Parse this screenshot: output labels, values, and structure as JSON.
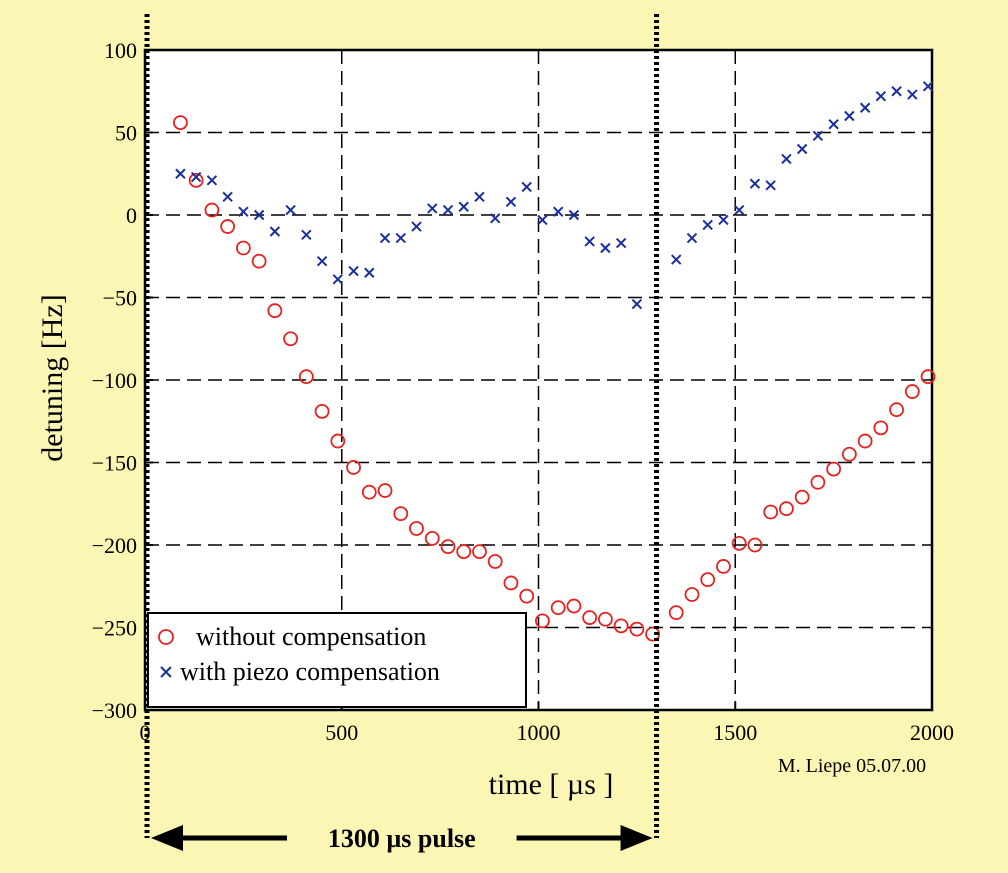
{
  "chart_data": {
    "type": "scatter",
    "title": "",
    "xlabel": "time [ µs ]",
    "ylabel": "detuning [Hz]",
    "xlim": [
      0,
      2000
    ],
    "ylim": [
      -300,
      100
    ],
    "grid": true,
    "legend_placement": "bottom-left",
    "x_ticks": [
      0,
      500,
      1000,
      1500,
      2000
    ],
    "x_tick_labels": [
      "0",
      "500",
      "1000",
      "1500",
      "2000"
    ],
    "y_ticks": [
      100,
      50,
      0,
      -50,
      -100,
      -150,
      -200,
      -250,
      -300
    ],
    "y_tick_labels": [
      "100",
      "50",
      "0",
      "−50",
      "−100",
      "−150",
      "−200",
      "−250",
      "−300"
    ],
    "series": [
      {
        "name": "without compensation",
        "marker": "circle",
        "color": "#e8201e",
        "points": [
          [
            90,
            56
          ],
          [
            130,
            21
          ],
          [
            170,
            3
          ],
          [
            210,
            -7
          ],
          [
            250,
            -20
          ],
          [
            290,
            -28
          ],
          [
            330,
            -58
          ],
          [
            370,
            -75
          ],
          [
            410,
            -98
          ],
          [
            450,
            -119
          ],
          [
            490,
            -137
          ],
          [
            530,
            -153
          ],
          [
            570,
            -168
          ],
          [
            610,
            -167
          ],
          [
            650,
            -181
          ],
          [
            690,
            -190
          ],
          [
            730,
            -196
          ],
          [
            770,
            -201
          ],
          [
            810,
            -204
          ],
          [
            850,
            -204
          ],
          [
            890,
            -210
          ],
          [
            930,
            -223
          ],
          [
            970,
            -231
          ],
          [
            1010,
            -246
          ],
          [
            1050,
            -238
          ],
          [
            1090,
            -237
          ],
          [
            1130,
            -244
          ],
          [
            1170,
            -245
          ],
          [
            1210,
            -249
          ],
          [
            1250,
            -251
          ],
          [
            1290,
            -254
          ],
          [
            1350,
            -241
          ],
          [
            1390,
            -230
          ],
          [
            1430,
            -221
          ],
          [
            1470,
            -213
          ],
          [
            1510,
            -199
          ],
          [
            1550,
            -200
          ],
          [
            1590,
            -180
          ],
          [
            1630,
            -178
          ],
          [
            1670,
            -171
          ],
          [
            1710,
            -162
          ],
          [
            1750,
            -154
          ],
          [
            1790,
            -145
          ],
          [
            1830,
            -137
          ],
          [
            1870,
            -129
          ],
          [
            1910,
            -118
          ],
          [
            1950,
            -107
          ],
          [
            1990,
            -98
          ]
        ]
      },
      {
        "name": "with piezo compensation",
        "marker": "x",
        "color": "#1a2f9c",
        "points": [
          [
            90,
            25
          ],
          [
            130,
            23
          ],
          [
            170,
            21
          ],
          [
            210,
            11
          ],
          [
            250,
            2
          ],
          [
            290,
            0
          ],
          [
            330,
            -10
          ],
          [
            370,
            3
          ],
          [
            410,
            -12
          ],
          [
            450,
            -28
          ],
          [
            490,
            -39
          ],
          [
            530,
            -34
          ],
          [
            570,
            -35
          ],
          [
            610,
            -14
          ],
          [
            650,
            -14
          ],
          [
            690,
            -7
          ],
          [
            730,
            4
          ],
          [
            770,
            3
          ],
          [
            810,
            5
          ],
          [
            850,
            11
          ],
          [
            890,
            -2
          ],
          [
            930,
            8
          ],
          [
            970,
            17
          ],
          [
            1010,
            -3
          ],
          [
            1050,
            2
          ],
          [
            1090,
            0
          ],
          [
            1130,
            -16
          ],
          [
            1170,
            -20
          ],
          [
            1210,
            -17
          ],
          [
            1250,
            -54
          ],
          [
            1350,
            -27
          ],
          [
            1390,
            -14
          ],
          [
            1430,
            -6
          ],
          [
            1470,
            -3
          ],
          [
            1510,
            3
          ],
          [
            1550,
            19
          ],
          [
            1590,
            18
          ],
          [
            1630,
            34
          ],
          [
            1670,
            40
          ],
          [
            1710,
            48
          ],
          [
            1750,
            55
          ],
          [
            1790,
            60
          ],
          [
            1830,
            65
          ],
          [
            1870,
            72
          ],
          [
            1910,
            75
          ],
          [
            1950,
            73
          ],
          [
            1990,
            78
          ]
        ]
      }
    ],
    "annotations": {
      "signature": "M. Liepe 05.07.00",
      "pulse_label": "1300 µs pulse",
      "pulse_start": 0,
      "pulse_end": 1300
    },
    "colors": {
      "background": "#fbf6b3",
      "plot_background": "#ffffff",
      "grid": "#000000",
      "pulse_markers": "#000000"
    }
  }
}
